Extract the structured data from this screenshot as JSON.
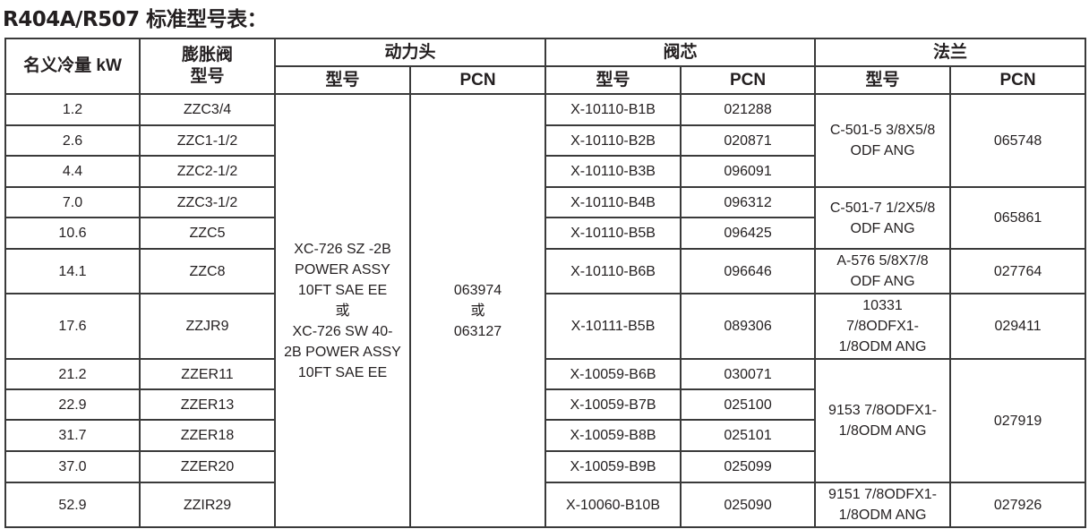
{
  "title": "R404A/R507 标准型号表：",
  "headers": {
    "capacity": "名义冷量 kW",
    "valve_model": "膨胀阀\n型号",
    "power_head": "动力头",
    "valve_core": "阀芯",
    "flange": "法兰",
    "model": "型号",
    "pcn": "PCN"
  },
  "power_head": {
    "model": "XC-726 SZ -2B\nPOWER ASSY\n10FT SAE EE\n或\nXC-726 SW 40-\n2B POWER ASSY\n10FT SAE EE",
    "pcn": "063974\n或\n063127"
  },
  "rows": [
    {
      "capacity": "1.2",
      "valve": "ZZC3/4",
      "core_model": "X-10110-B1B",
      "core_pcn": "021288"
    },
    {
      "capacity": "2.6",
      "valve": "ZZC1-1/2",
      "core_model": "X-10110-B2B",
      "core_pcn": "020871"
    },
    {
      "capacity": "4.4",
      "valve": "ZZC2-1/2",
      "core_model": "X-10110-B3B",
      "core_pcn": "096091"
    },
    {
      "capacity": "7.0",
      "valve": "ZZC3-1/2",
      "core_model": "X-10110-B4B",
      "core_pcn": "096312"
    },
    {
      "capacity": "10.6",
      "valve": "ZZC5",
      "core_model": "X-10110-B5B",
      "core_pcn": "096425"
    },
    {
      "capacity": "14.1",
      "valve": "ZZC8",
      "core_model": "X-10110-B6B",
      "core_pcn": "096646"
    },
    {
      "capacity": "17.6",
      "valve": "ZZJR9",
      "core_model": "X-10111-B5B",
      "core_pcn": "089306"
    },
    {
      "capacity": "21.2",
      "valve": "ZZER11",
      "core_model": "X-10059-B6B",
      "core_pcn": "030071"
    },
    {
      "capacity": "22.9",
      "valve": "ZZER13",
      "core_model": "X-10059-B7B",
      "core_pcn": "025100"
    },
    {
      "capacity": "31.7",
      "valve": "ZZER18",
      "core_model": "X-10059-B8B",
      "core_pcn": "025101"
    },
    {
      "capacity": "37.0",
      "valve": "ZZER20",
      "core_model": "X-10059-B9B",
      "core_pcn": "025099"
    },
    {
      "capacity": "52.9",
      "valve": "ZZIR29",
      "core_model": "X-10060-B10B",
      "core_pcn": "025090"
    }
  ],
  "flanges": [
    {
      "start": 0,
      "span": 3,
      "model": "C-501-5 3/8X5/8\nODF ANG",
      "pcn": "065748"
    },
    {
      "start": 3,
      "span": 2,
      "model": "C-501-7 1/2X5/8\nODF ANG",
      "pcn": "065861"
    },
    {
      "start": 5,
      "span": 1,
      "model": "A-576 5/8X7/8\nODF ANG",
      "pcn": "027764"
    },
    {
      "start": 6,
      "span": 1,
      "model": "10331\n7/8ODFX1-\n1/8ODM ANG",
      "pcn": "029411"
    },
    {
      "start": 7,
      "span": 4,
      "model": "9153 7/8ODFX1-\n1/8ODM ANG",
      "pcn": "027919"
    },
    {
      "start": 11,
      "span": 1,
      "model": "9151 7/8ODFX1-\n1/8ODM ANG",
      "pcn": "027926"
    }
  ]
}
